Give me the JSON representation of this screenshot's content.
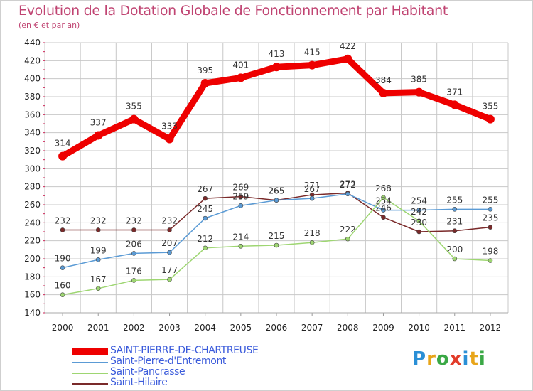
{
  "header": {
    "title": "Evolution de la Dotation Globale de Fonctionnement par Habitant",
    "subtitle": "(en € et par an)"
  },
  "colors": {
    "title": "#c04472",
    "grid": "#c8c8c8",
    "axis_ticks": "#cc2255",
    "legend_text": "#3b5bdb"
  },
  "logo": {
    "text": "Proxiti",
    "letters": [
      {
        "ch": "P",
        "color": "#2a8fd6"
      },
      {
        "ch": "r",
        "color": "#e8a51a"
      },
      {
        "ch": "o",
        "color": "#3aa845"
      },
      {
        "ch": "x",
        "color": "#e23c2a"
      },
      {
        "ch": "i",
        "color": "#2a8fd6"
      },
      {
        "ch": "t",
        "color": "#e8a51a"
      },
      {
        "ch": "i",
        "color": "#3aa845"
      }
    ]
  },
  "chart_data": {
    "type": "line",
    "title": "Evolution de la Dotation Globale de Fonctionnement par Habitant",
    "subtitle": "(en € et par an)",
    "x": [
      "2000",
      "2001",
      "2002",
      "2003",
      "2004",
      "2005",
      "2006",
      "2007",
      "2008",
      "2009",
      "2010",
      "2011",
      "2012"
    ],
    "ylim": [
      140,
      440
    ],
    "yticks": [
      140,
      160,
      180,
      200,
      220,
      240,
      260,
      280,
      300,
      320,
      340,
      360,
      380,
      400,
      420,
      440
    ],
    "grid": true,
    "legend_position": "bottom-left",
    "series": [
      {
        "name": "SAINT-PIERRE-DE-CHARTREUSE",
        "color": "#ee0000",
        "width": 9,
        "values": [
          314,
          337,
          355,
          333,
          395,
          401,
          413,
          415,
          422,
          384,
          385,
          371,
          355
        ],
        "labels": [
          "314",
          "337",
          "355",
          "333",
          "395",
          "401",
          "413",
          "415",
          "422",
          "384",
          "385",
          "371",
          "355"
        ]
      },
      {
        "name": "Saint-Pierre-d'Entremont",
        "color": "#5b9bd5",
        "width": 1.5,
        "values": [
          190,
          199,
          206,
          207,
          245,
          259,
          265,
          267,
          272,
          254,
          254,
          255,
          255
        ],
        "labels": [
          "190",
          "199",
          "206",
          "207",
          "245",
          "259",
          "265",
          "267",
          "272",
          "254",
          "254",
          "255",
          "255"
        ]
      },
      {
        "name": "Saint-Pancrasse",
        "color": "#9ed672",
        "width": 1.5,
        "values": [
          160,
          167,
          176,
          177,
          212,
          214,
          215,
          218,
          222,
          268,
          242,
          200,
          198
        ],
        "labels": [
          "160",
          "167",
          "176",
          "177",
          "212",
          "214",
          "215",
          "218",
          "222",
          "268",
          "242",
          "200",
          "198"
        ]
      },
      {
        "name": "Saint-Hilaire",
        "color": "#7a2a2a",
        "width": 1.5,
        "values": [
          232,
          232,
          232,
          232,
          267,
          269,
          265,
          271,
          273,
          246,
          230,
          231,
          235
        ],
        "labels": [
          "232",
          "232",
          "232",
          "232",
          "267",
          "269",
          "265",
          "271",
          "273",
          "246",
          "230",
          "231",
          "235"
        ]
      }
    ]
  }
}
